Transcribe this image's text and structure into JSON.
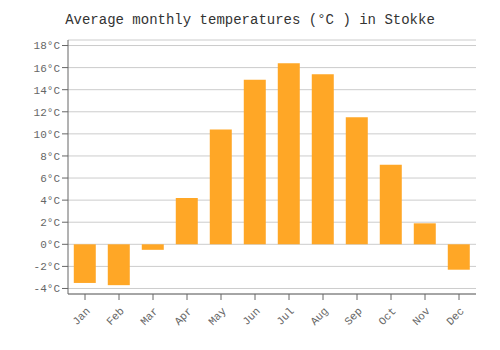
{
  "chart_data": {
    "type": "bar",
    "title": "Average monthly temperatures (°C ) in Stokke",
    "categories": [
      "Jan",
      "Feb",
      "Mar",
      "Apr",
      "May",
      "Jun",
      "Jul",
      "Aug",
      "Sep",
      "Oct",
      "Nov",
      "Dec"
    ],
    "values": [
      -3.5,
      -3.7,
      -0.5,
      4.2,
      10.4,
      14.9,
      16.4,
      15.4,
      11.5,
      7.2,
      1.9,
      -2.3
    ],
    "color": "#FFA726",
    "ylim": [
      -4.5,
      18.5
    ],
    "yticks": [
      {
        "value": -4,
        "label": "-4°C"
      },
      {
        "value": -2,
        "label": "-2°C"
      },
      {
        "value": 0,
        "label": "0°C"
      },
      {
        "value": 2,
        "label": "2°C"
      },
      {
        "value": 4,
        "label": "4°C"
      },
      {
        "value": 6,
        "label": "6°C"
      },
      {
        "value": 8,
        "label": "8°C"
      },
      {
        "value": 10,
        "label": "10°C"
      },
      {
        "value": 12,
        "label": "12°C"
      },
      {
        "value": 14,
        "label": "14°C"
      },
      {
        "value": 16,
        "label": "16°C"
      },
      {
        "value": 18,
        "label": "18°C"
      }
    ],
    "grid": true
  }
}
